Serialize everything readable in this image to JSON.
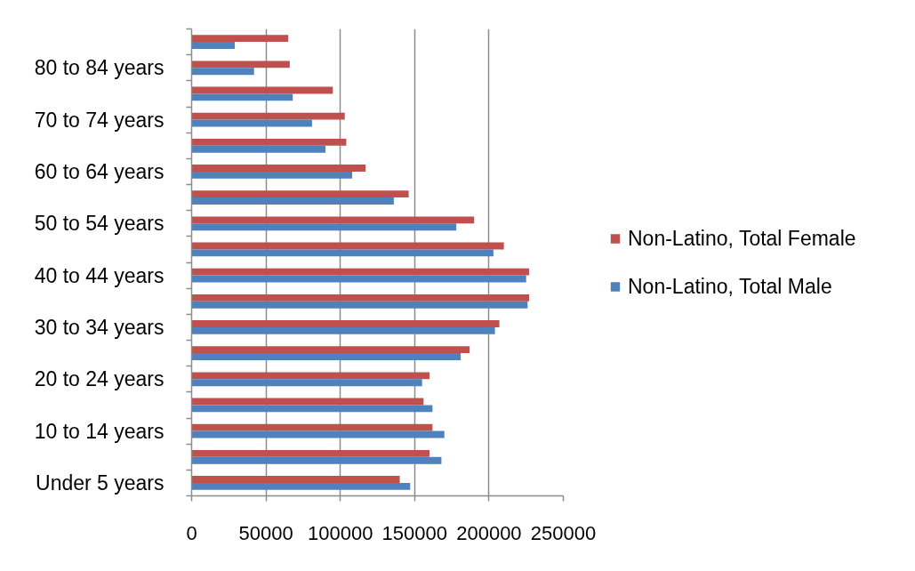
{
  "chart_data": {
    "type": "bar",
    "orientation": "horizontal",
    "categories": [
      null,
      "80 to 84 years",
      null,
      "70 to 74 years",
      null,
      "60 to 64 years",
      null,
      "50 to 54 years",
      null,
      "40 to 44 years",
      null,
      "30 to 34 years",
      null,
      "20 to 24 years",
      null,
      "10 to 14 years",
      null,
      "Under 5 years"
    ],
    "series": [
      {
        "name": "Non-Latino, Total Female",
        "color": "#c0504d",
        "values": [
          65000,
          66000,
          95000,
          103000,
          104000,
          117000,
          146000,
          190000,
          210000,
          227000,
          227000,
          207000,
          187000,
          160000,
          156000,
          162000,
          160000,
          140000
        ]
      },
      {
        "name": "Non-Latino, Total Male",
        "color": "#4f81bd",
        "values": [
          29000,
          42000,
          68000,
          81000,
          90000,
          108000,
          136000,
          178000,
          203000,
          225000,
          226000,
          204000,
          181000,
          155000,
          162000,
          170000,
          168000,
          147000
        ]
      }
    ],
    "xlim": [
      0,
      250000
    ],
    "xticks": [
      0,
      50000,
      100000,
      150000,
      200000,
      250000
    ],
    "grid": "x",
    "legend": "right"
  }
}
